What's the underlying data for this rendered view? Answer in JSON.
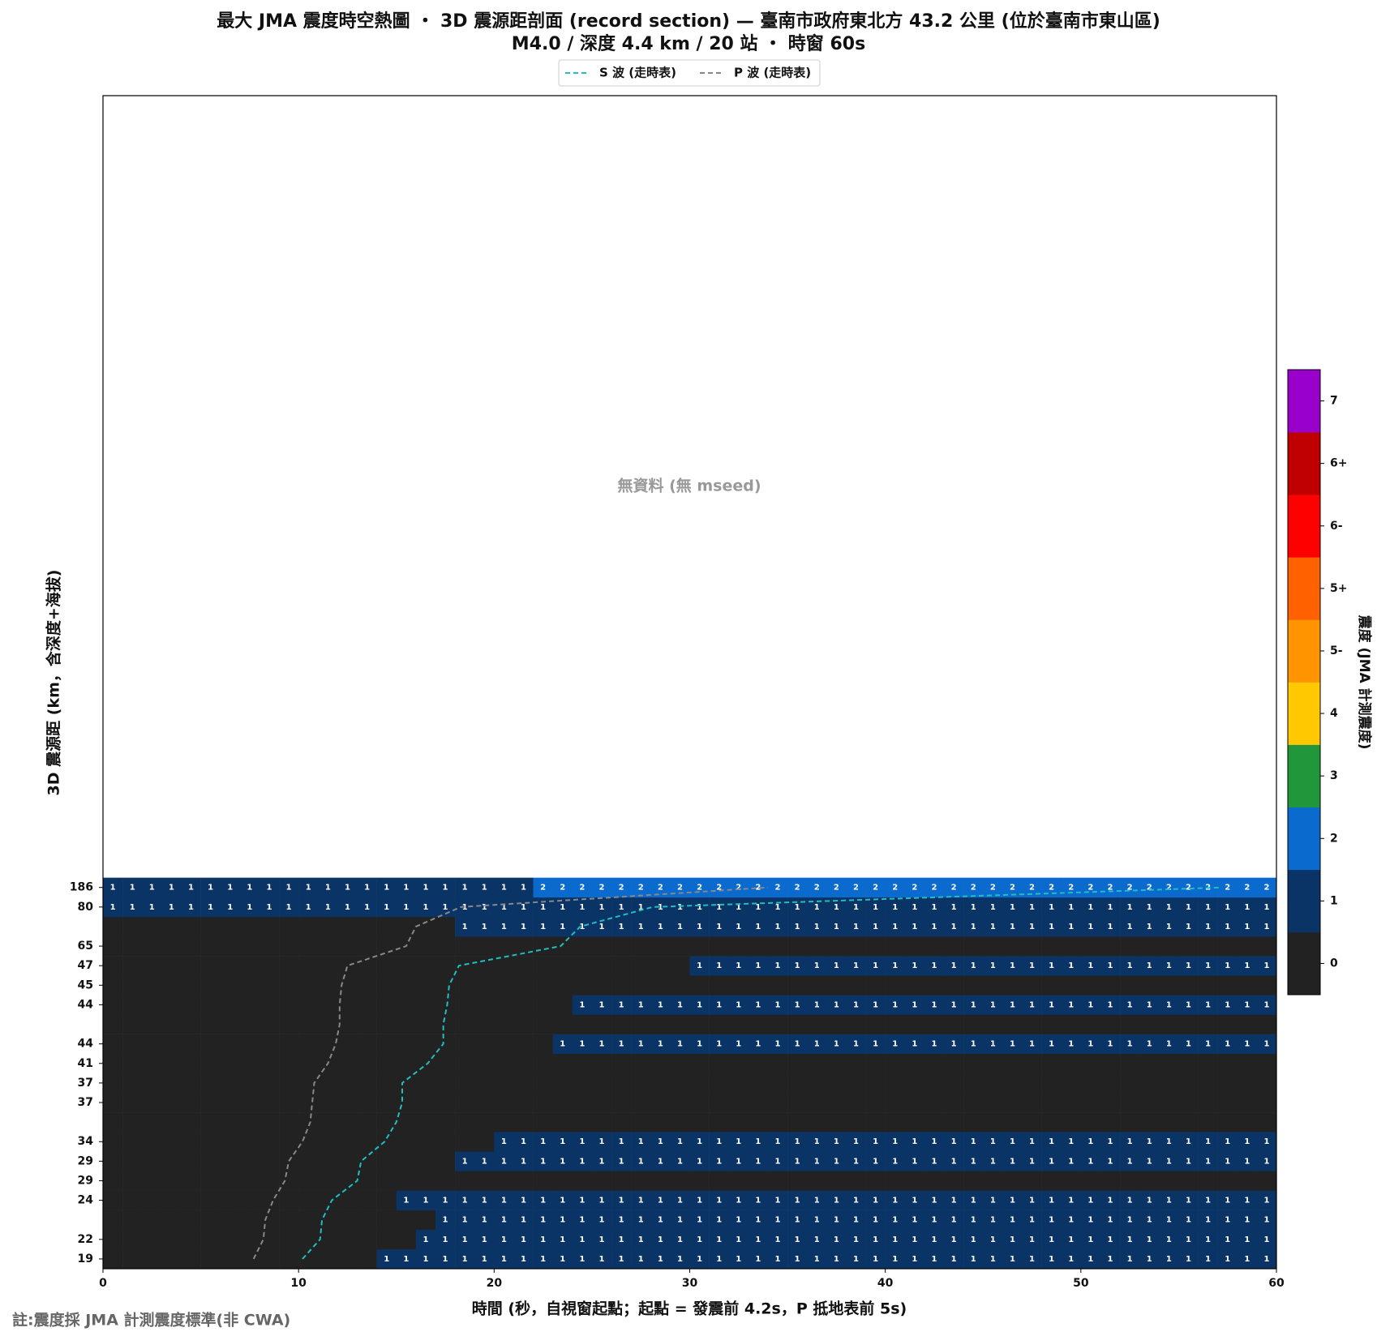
{
  "chart_data": {
    "type": "heatmap",
    "title": "最大 JMA 震度時空熱圖 ・ 3D 震源距剖面 (record section) — 臺南市政府東北方  43.2  公里 (位於臺南市東山區)",
    "subtitle": "M4.0 / 深度 4.4 km / 20 站 ・ 時窗 60s",
    "xlabel": "時間 (秒，自視窗起點；起點 = 發震前 4.2s，P 抵地表前 5s)",
    "ylabel": "3D 震源距 (km，含深度+海拔)",
    "annotation": "無資料 (無 mseed)",
    "footnote": "註:震度採 JMA 計測震度標準(非 CWA)",
    "xlim": [
      0,
      60
    ],
    "xticks": [
      0,
      10,
      20,
      30,
      40,
      50,
      60
    ],
    "ylim": [
      -0.5,
      59.5
    ],
    "categories": [
      "19",
      "22",
      null,
      "24",
      "29",
      "29",
      "34",
      null,
      "37",
      "37",
      "41",
      "44",
      null,
      "44",
      "45",
      "47",
      "65",
      null,
      "80",
      "186"
    ],
    "z": [
      [
        0,
        0,
        0,
        0,
        0,
        0,
        0,
        0,
        0,
        0,
        0,
        0,
        0,
        0,
        1,
        1,
        1,
        1,
        1,
        1,
        1,
        1,
        1,
        1,
        1,
        1,
        1,
        1,
        1,
        1,
        1,
        1,
        1,
        1,
        1,
        1,
        1,
        1,
        1,
        1,
        1,
        1,
        1,
        1,
        1,
        1,
        1,
        1,
        1,
        1,
        1,
        1,
        1,
        1,
        1,
        1,
        1,
        1,
        1,
        1
      ],
      [
        0,
        0,
        0,
        0,
        0,
        0,
        0,
        0,
        0,
        0,
        0,
        0,
        0,
        0,
        0,
        0,
        1,
        1,
        1,
        1,
        1,
        1,
        1,
        1,
        1,
        1,
        1,
        1,
        1,
        1,
        1,
        1,
        1,
        1,
        1,
        1,
        1,
        1,
        1,
        1,
        1,
        1,
        1,
        1,
        1,
        1,
        1,
        1,
        1,
        1,
        1,
        1,
        1,
        1,
        1,
        1,
        1,
        1,
        1,
        1
      ],
      [
        0,
        0,
        0,
        0,
        0,
        0,
        0,
        0,
        0,
        0,
        0,
        0,
        0,
        0,
        0,
        0,
        0,
        1,
        1,
        1,
        1,
        1,
        1,
        1,
        1,
        1,
        1,
        1,
        1,
        1,
        1,
        1,
        1,
        1,
        1,
        1,
        1,
        1,
        1,
        1,
        1,
        1,
        1,
        1,
        1,
        1,
        1,
        1,
        1,
        1,
        1,
        1,
        1,
        1,
        1,
        1,
        1,
        1,
        1,
        1
      ],
      [
        0,
        0,
        0,
        0,
        0,
        0,
        0,
        0,
        0,
        0,
        0,
        0,
        0,
        0,
        0,
        1,
        1,
        1,
        1,
        1,
        1,
        1,
        1,
        1,
        1,
        1,
        1,
        1,
        1,
        1,
        1,
        1,
        1,
        1,
        1,
        1,
        1,
        1,
        1,
        1,
        1,
        1,
        1,
        1,
        1,
        1,
        1,
        1,
        1,
        1,
        1,
        1,
        1,
        1,
        1,
        1,
        1,
        1,
        1,
        1
      ],
      [
        0,
        0,
        0,
        0,
        0,
        0,
        0,
        0,
        0,
        0,
        0,
        0,
        0,
        0,
        0,
        0,
        0,
        0,
        0,
        0,
        0,
        0,
        0,
        0,
        0,
        0,
        0,
        0,
        0,
        0,
        0,
        0,
        0,
        0,
        0,
        0,
        0,
        0,
        0,
        0,
        0,
        0,
        0,
        0,
        0,
        0,
        0,
        0,
        0,
        0,
        0,
        0,
        0,
        0,
        0,
        0,
        0,
        0,
        0,
        0
      ],
      [
        0,
        0,
        0,
        0,
        0,
        0,
        0,
        0,
        0,
        0,
        0,
        0,
        0,
        0,
        0,
        0,
        0,
        0,
        1,
        1,
        1,
        1,
        1,
        1,
        1,
        1,
        1,
        1,
        1,
        1,
        1,
        1,
        1,
        1,
        1,
        1,
        1,
        1,
        1,
        1,
        1,
        1,
        1,
        1,
        1,
        1,
        1,
        1,
        1,
        1,
        1,
        1,
        1,
        1,
        1,
        1,
        1,
        1,
        1,
        1
      ],
      [
        0,
        0,
        0,
        0,
        0,
        0,
        0,
        0,
        0,
        0,
        0,
        0,
        0,
        0,
        0,
        0,
        0,
        0,
        0,
        0,
        1,
        1,
        1,
        1,
        1,
        1,
        1,
        1,
        1,
        1,
        1,
        1,
        1,
        1,
        1,
        1,
        1,
        1,
        1,
        1,
        1,
        1,
        1,
        1,
        1,
        1,
        1,
        1,
        1,
        1,
        1,
        1,
        1,
        1,
        1,
        1,
        1,
        1,
        1,
        1
      ],
      [
        0,
        0,
        0,
        0,
        0,
        0,
        0,
        0,
        0,
        0,
        0,
        0,
        0,
        0,
        0,
        0,
        0,
        0,
        0,
        0,
        0,
        0,
        0,
        0,
        0,
        0,
        0,
        0,
        0,
        0,
        0,
        0,
        0,
        0,
        0,
        0,
        0,
        0,
        0,
        0,
        0,
        0,
        0,
        0,
        0,
        0,
        0,
        0,
        0,
        0,
        0,
        0,
        0,
        0,
        0,
        0,
        0,
        0,
        0,
        0
      ],
      [
        0,
        0,
        0,
        0,
        0,
        0,
        0,
        0,
        0,
        0,
        0,
        0,
        0,
        0,
        0,
        0,
        0,
        0,
        0,
        0,
        0,
        0,
        0,
        0,
        0,
        0,
        0,
        0,
        0,
        0,
        0,
        0,
        0,
        0,
        0,
        0,
        0,
        0,
        0,
        0,
        0,
        0,
        0,
        0,
        0,
        0,
        0,
        0,
        0,
        0,
        0,
        0,
        0,
        0,
        0,
        0,
        0,
        0,
        0,
        0
      ],
      [
        0,
        0,
        0,
        0,
        0,
        0,
        0,
        0,
        0,
        0,
        0,
        0,
        0,
        0,
        0,
        0,
        0,
        0,
        0,
        0,
        0,
        0,
        0,
        0,
        0,
        0,
        0,
        0,
        0,
        0,
        0,
        0,
        0,
        0,
        0,
        0,
        0,
        0,
        0,
        0,
        0,
        0,
        0,
        0,
        0,
        0,
        0,
        0,
        0,
        0,
        0,
        0,
        0,
        0,
        0,
        0,
        0,
        0,
        0,
        0
      ],
      [
        0,
        0,
        0,
        0,
        0,
        0,
        0,
        0,
        0,
        0,
        0,
        0,
        0,
        0,
        0,
        0,
        0,
        0,
        0,
        0,
        0,
        0,
        0,
        0,
        0,
        0,
        0,
        0,
        0,
        0,
        0,
        0,
        0,
        0,
        0,
        0,
        0,
        0,
        0,
        0,
        0,
        0,
        0,
        0,
        0,
        0,
        0,
        0,
        0,
        0,
        0,
        0,
        0,
        0,
        0,
        0,
        0,
        0,
        0,
        0
      ],
      [
        0,
        0,
        0,
        0,
        0,
        0,
        0,
        0,
        0,
        0,
        0,
        0,
        0,
        0,
        0,
        0,
        0,
        0,
        0,
        0,
        0,
        0,
        0,
        1,
        1,
        1,
        1,
        1,
        1,
        1,
        1,
        1,
        1,
        1,
        1,
        1,
        1,
        1,
        1,
        1,
        1,
        1,
        1,
        1,
        1,
        1,
        1,
        1,
        1,
        1,
        1,
        1,
        1,
        1,
        1,
        1,
        1,
        1,
        1,
        1
      ],
      [
        0,
        0,
        0,
        0,
        0,
        0,
        0,
        0,
        0,
        0,
        0,
        0,
        0,
        0,
        0,
        0,
        0,
        0,
        0,
        0,
        0,
        0,
        0,
        0,
        0,
        0,
        0,
        0,
        0,
        0,
        0,
        0,
        0,
        0,
        0,
        0,
        0,
        0,
        0,
        0,
        0,
        0,
        0,
        0,
        0,
        0,
        0,
        0,
        0,
        0,
        0,
        0,
        0,
        0,
        0,
        0,
        0,
        0,
        0,
        0
      ],
      [
        0,
        0,
        0,
        0,
        0,
        0,
        0,
        0,
        0,
        0,
        0,
        0,
        0,
        0,
        0,
        0,
        0,
        0,
        0,
        0,
        0,
        0,
        0,
        0,
        1,
        1,
        1,
        1,
        1,
        1,
        1,
        1,
        1,
        1,
        1,
        1,
        1,
        1,
        1,
        1,
        1,
        1,
        1,
        1,
        1,
        1,
        1,
        1,
        1,
        1,
        1,
        1,
        1,
        1,
        1,
        1,
        1,
        1,
        1,
        1
      ],
      [
        0,
        0,
        0,
        0,
        0,
        0,
        0,
        0,
        0,
        0,
        0,
        0,
        0,
        0,
        0,
        0,
        0,
        0,
        0,
        0,
        0,
        0,
        0,
        0,
        0,
        0,
        0,
        0,
        0,
        0,
        0,
        0,
        0,
        0,
        0,
        0,
        0,
        0,
        0,
        0,
        0,
        0,
        0,
        0,
        0,
        0,
        0,
        0,
        0,
        0,
        0,
        0,
        0,
        0,
        0,
        0,
        0,
        0,
        0,
        0
      ],
      [
        0,
        0,
        0,
        0,
        0,
        0,
        0,
        0,
        0,
        0,
        0,
        0,
        0,
        0,
        0,
        0,
        0,
        0,
        0,
        0,
        0,
        0,
        0,
        0,
        0,
        0,
        0,
        0,
        0,
        0,
        1,
        1,
        1,
        1,
        1,
        1,
        1,
        1,
        1,
        1,
        1,
        1,
        1,
        1,
        1,
        1,
        1,
        1,
        1,
        1,
        1,
        1,
        1,
        1,
        1,
        1,
        1,
        1,
        1,
        1
      ],
      [
        0,
        0,
        0,
        0,
        0,
        0,
        0,
        0,
        0,
        0,
        0,
        0,
        0,
        0,
        0,
        0,
        0,
        0,
        0,
        0,
        0,
        0,
        0,
        0,
        0,
        0,
        0,
        0,
        0,
        0,
        0,
        0,
        0,
        0,
        0,
        0,
        0,
        0,
        0,
        0,
        0,
        0,
        0,
        0,
        0,
        0,
        0,
        0,
        0,
        0,
        0,
        0,
        0,
        0,
        0,
        0,
        0,
        0,
        0,
        0
      ],
      [
        0,
        0,
        0,
        0,
        0,
        0,
        0,
        0,
        0,
        0,
        0,
        0,
        0,
        0,
        0,
        0,
        0,
        0,
        1,
        1,
        1,
        1,
        1,
        1,
        1,
        1,
        1,
        1,
        1,
        1,
        1,
        1,
        1,
        1,
        1,
        1,
        1,
        1,
        1,
        1,
        1,
        1,
        1,
        1,
        1,
        1,
        1,
        1,
        1,
        1,
        1,
        1,
        1,
        1,
        1,
        1,
        1,
        1,
        1,
        1
      ],
      [
        1,
        1,
        1,
        1,
        1,
        1,
        1,
        1,
        1,
        1,
        1,
        1,
        1,
        1,
        1,
        1,
        1,
        1,
        1,
        1,
        1,
        1,
        1,
        1,
        1,
        1,
        1,
        1,
        1,
        1,
        1,
        1,
        1,
        1,
        1,
        1,
        1,
        1,
        1,
        1,
        1,
        1,
        1,
        1,
        1,
        1,
        1,
        1,
        1,
        1,
        1,
        1,
        1,
        1,
        1,
        1,
        1,
        1,
        1,
        1
      ],
      [
        1,
        1,
        1,
        1,
        1,
        1,
        1,
        1,
        1,
        1,
        1,
        1,
        1,
        1,
        1,
        1,
        1,
        1,
        1,
        1,
        1,
        1,
        2,
        2,
        2,
        2,
        2,
        2,
        2,
        2,
        2,
        2,
        2,
        2,
        2,
        2,
        2,
        2,
        2,
        2,
        2,
        2,
        2,
        2,
        2,
        2,
        2,
        2,
        2,
        2,
        2,
        2,
        2,
        2,
        2,
        2,
        2,
        2,
        2,
        2
      ]
    ],
    "series": [
      {
        "name": "S 波 (走時表)",
        "color": "#1fbfbf",
        "values": [
          10.2,
          11.1,
          11.2,
          11.7,
          13.0,
          13.2,
          14.4,
          15.0,
          15.3,
          15.3,
          16.6,
          17.4,
          17.4,
          17.6,
          17.7,
          18.2,
          23.4,
          24.4,
          28.1,
          57.2
        ]
      },
      {
        "name": "P 波 (走時表)",
        "color": "#888888",
        "values": [
          7.7,
          8.2,
          8.3,
          8.7,
          9.3,
          9.5,
          10.2,
          10.6,
          10.7,
          10.8,
          11.5,
          11.9,
          12.1,
          12.1,
          12.2,
          12.5,
          15.5,
          16.0,
          18.3,
          34.0
        ]
      }
    ],
    "colorbar": {
      "label": "震度 (JMA 計測震度)",
      "ticks": [
        "0",
        "1",
        "2",
        "3",
        "4",
        "5-",
        "5+",
        "6-",
        "6+",
        "7"
      ],
      "colors": [
        "#222222",
        "#0b3466",
        "#0a6acd",
        "#22963a",
        "#ffc800",
        "#ff9400",
        "#ff6000",
        "#ff0000",
        "#c00000",
        "#9a00cc"
      ]
    }
  }
}
